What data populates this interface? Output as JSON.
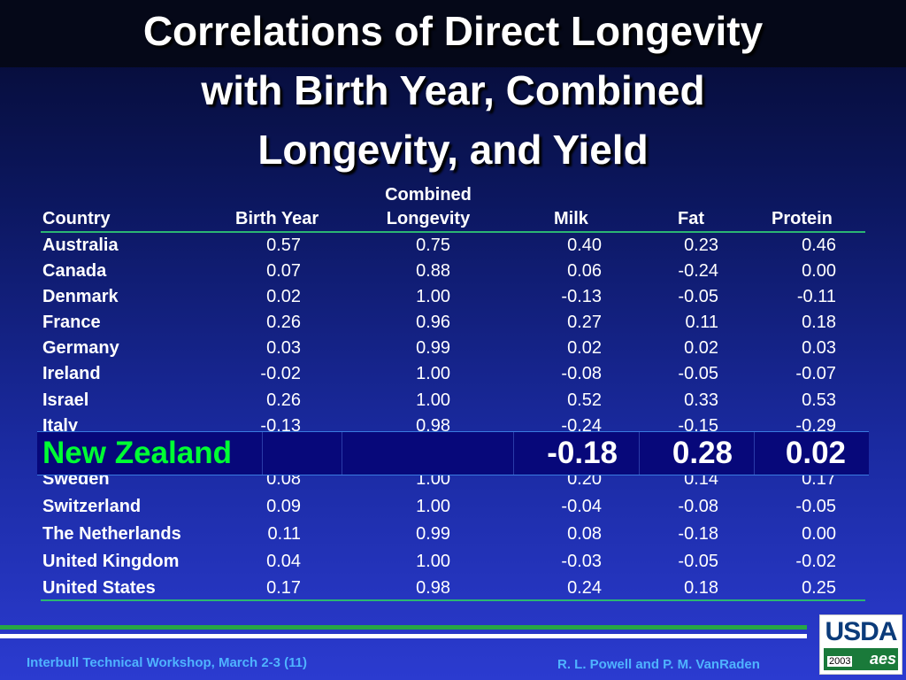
{
  "title": {
    "line1": "Correlations of Direct Longevity",
    "line2": "with Birth Year, Combined",
    "line3": "Longevity, and Yield"
  },
  "headers": {
    "country": "Country",
    "birth_year": "Birth Year",
    "combined_top": "Combined",
    "combined_bottom": "Longevity",
    "milk": "Milk",
    "fat": "Fat",
    "protein": "Protein"
  },
  "rows": [
    {
      "country": "Australia",
      "birth_year": "0.57",
      "combined": "0.75",
      "milk": "0.40",
      "fat": "0.23",
      "protein": "0.46"
    },
    {
      "country": "Canada",
      "birth_year": "0.07",
      "combined": "0.88",
      "milk": "0.06",
      "fat": "-0.24",
      "protein": "0.00"
    },
    {
      "country": "Denmark",
      "birth_year": "0.02",
      "combined": "1.00",
      "milk": "-0.13",
      "fat": "-0.05",
      "protein": "-0.11"
    },
    {
      "country": "France",
      "birth_year": "0.26",
      "combined": "0.96",
      "milk": "0.27",
      "fat": "0.11",
      "protein": "0.18"
    },
    {
      "country": "Germany",
      "birth_year": "0.03",
      "combined": "0.99",
      "milk": "0.02",
      "fat": "0.02",
      "protein": "0.03"
    },
    {
      "country": "Ireland",
      "birth_year": "-0.02",
      "combined": "1.00",
      "milk": "-0.08",
      "fat": "-0.05",
      "protein": "-0.07"
    },
    {
      "country": "Israel",
      "birth_year": "0.26",
      "combined": "1.00",
      "milk": "0.52",
      "fat": "0.33",
      "protein": "0.53"
    },
    {
      "country": "Italy",
      "birth_year": "-0.13",
      "combined": "0.98",
      "milk": "-0.24",
      "fat": "-0.15",
      "protein": "-0.29"
    },
    {
      "country": "Sweden",
      "birth_year": "0.08",
      "combined": "1.00",
      "milk": "0.20",
      "fat": "0.14",
      "protein": "0.17"
    },
    {
      "country": "Switzerland",
      "birth_year": "0.09",
      "combined": "1.00",
      "milk": "-0.04",
      "fat": "-0.08",
      "protein": "-0.05"
    },
    {
      "country": "The Netherlands",
      "birth_year": "0.11",
      "combined": "0.99",
      "milk": "0.08",
      "fat": "-0.18",
      "protein": "0.00"
    },
    {
      "country": "United Kingdom",
      "birth_year": "0.04",
      "combined": "1.00",
      "milk": "-0.03",
      "fat": "-0.05",
      "protein": "-0.02"
    },
    {
      "country": "United States",
      "birth_year": "0.17",
      "combined": "0.98",
      "milk": "0.24",
      "fat": "0.18",
      "protein": "0.25"
    }
  ],
  "highlight": {
    "country": "New Zealand",
    "milk": "-0.18",
    "fat": "0.28",
    "protein": "0.02"
  },
  "footer": {
    "left": "Interbull Technical Workshop, March 2-3 (11)",
    "right": "R. L. Powell  and P. M. VanRaden"
  },
  "logo": {
    "text": "USDA",
    "year": "2003",
    "mark": "aes"
  },
  "colors": {
    "highlight_country": "#00ff33",
    "rule": "#2bb673",
    "footer_text": "#4fb3ff"
  }
}
